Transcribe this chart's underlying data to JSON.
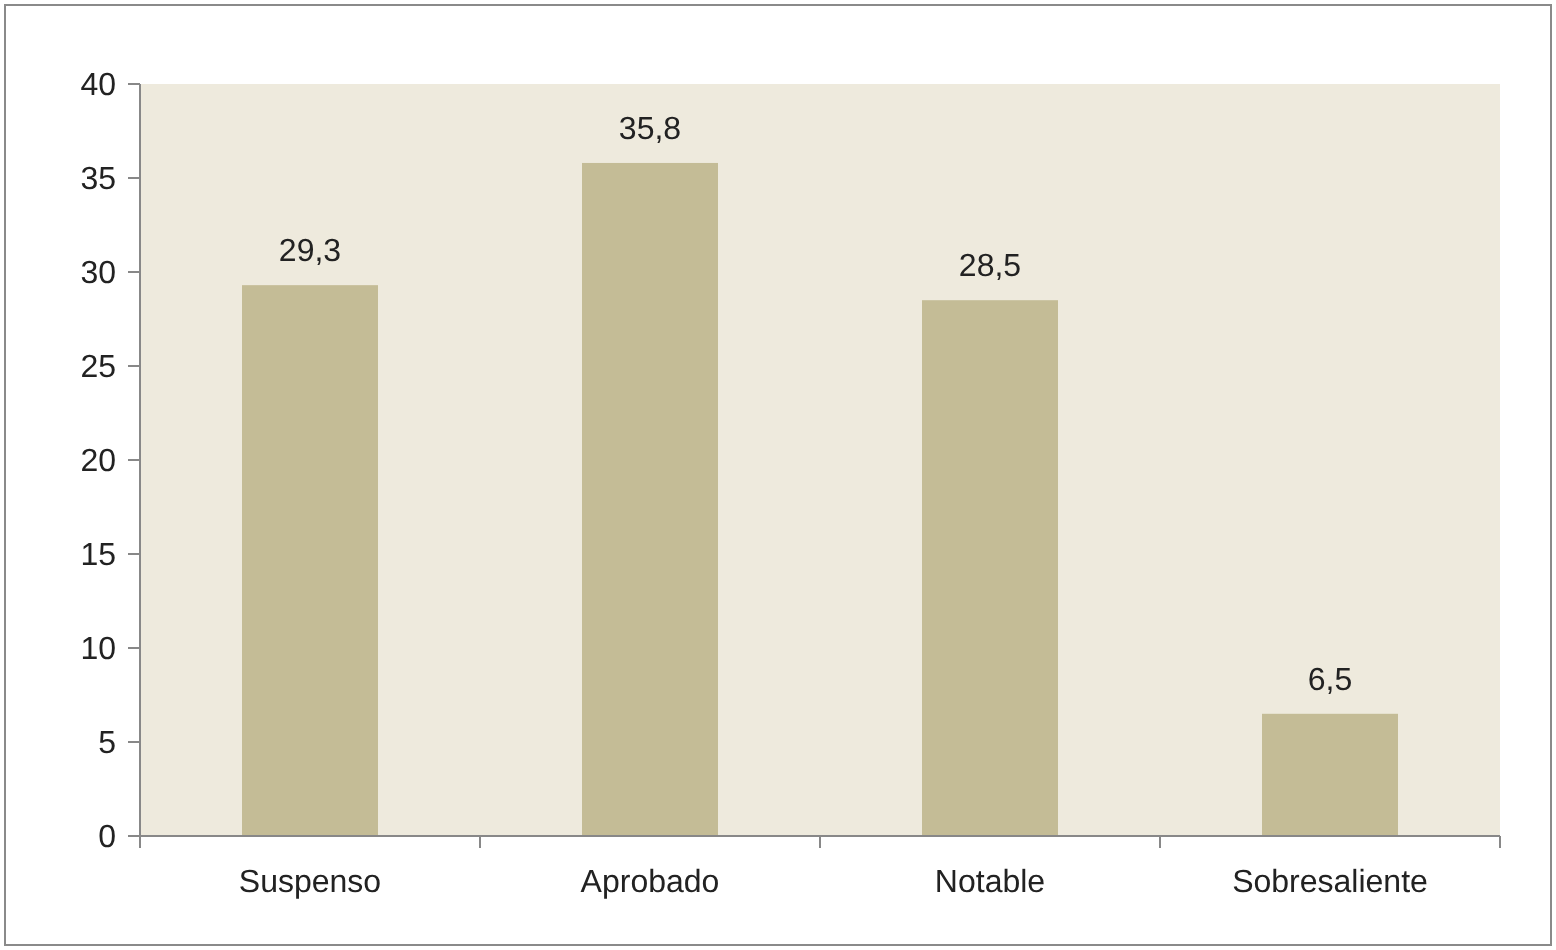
{
  "chart_data": {
    "type": "bar",
    "categories": [
      "Suspenso",
      "Aprobado",
      "Notable",
      "Sobresaliente"
    ],
    "values": [
      29.3,
      35.8,
      28.5,
      6.5
    ],
    "color": "#c4bc96",
    "value_labels": [
      "29,3",
      "35,8",
      "28,5",
      "6,5"
    ],
    "ylim": [
      0,
      40
    ],
    "yticks": [
      0,
      5,
      10,
      15,
      20,
      25,
      30,
      35,
      40
    ],
    "grid": false
  }
}
